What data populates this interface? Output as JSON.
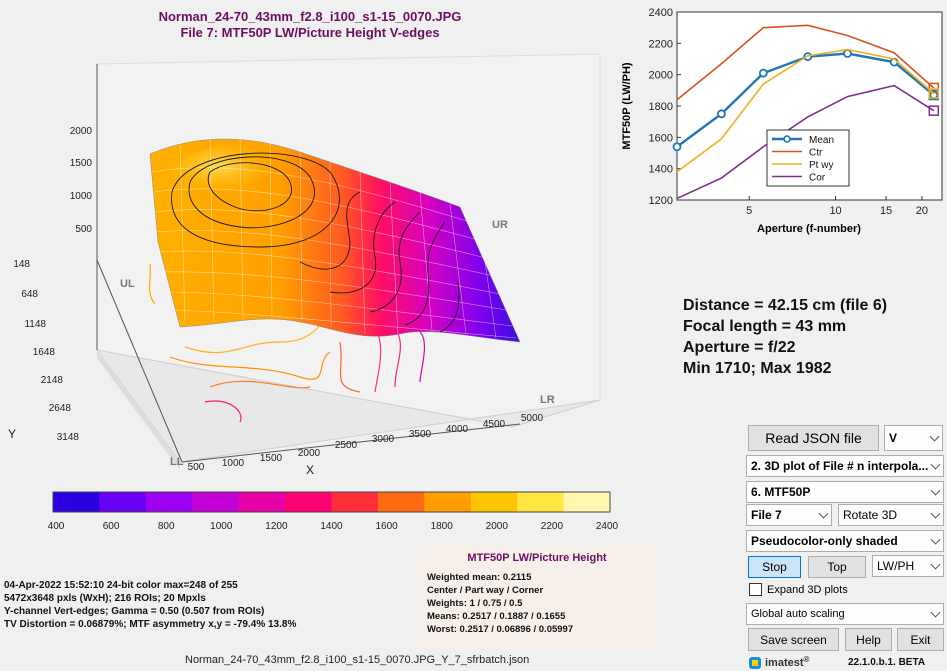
{
  "title": {
    "line1": "Norman_24-70_43mm_f2.8_i100_s1-15_0070.JPG",
    "line2": "File 7:   MTF50P LW/Picture Height   V-edges"
  },
  "plot3d": {
    "z_ticks": [
      "2000",
      "1500",
      "1000",
      "500"
    ],
    "y_ticks": [
      "148",
      "648",
      "1148",
      "1648",
      "2148",
      "2648",
      "3148"
    ],
    "x_ticks": [
      "500",
      "1000",
      "1500",
      "2000",
      "2500",
      "3000",
      "3500",
      "4000",
      "4500",
      "5000"
    ],
    "x_label": "X",
    "y_label": "Y",
    "corner_labels": {
      "ul": "UL",
      "ur": "UR",
      "ll": "LL",
      "lr": "LR"
    }
  },
  "colorbar": {
    "ticks": [
      "400",
      "600",
      "800",
      "1000",
      "1200",
      "1400",
      "1600",
      "1800",
      "2000",
      "2200",
      "2400"
    ],
    "colors": [
      "#2a00e0",
      "#6a00f5",
      "#9c00f0",
      "#c400d8",
      "#e600a8",
      "#ff0070",
      "#ff2e3a",
      "#ff6a10",
      "#ff9c00",
      "#ffc400",
      "#ffe640",
      "#fff7b0"
    ]
  },
  "chart_data": {
    "type": "line",
    "x": [
      2.8,
      4,
      5.6,
      8,
      11,
      16,
      22
    ],
    "series": [
      {
        "name": "Mean",
        "color": "#1f77b4",
        "values": [
          1540,
          1750,
          2010,
          2115,
          2135,
          2080,
          1870
        ]
      },
      {
        "name": "Ctr",
        "color": "#d9531e",
        "values": [
          1840,
          2070,
          2300,
          2315,
          2250,
          2140,
          1915
        ]
      },
      {
        "name": "Pt wy",
        "color": "#edb120",
        "values": [
          1380,
          1590,
          1940,
          2120,
          2160,
          2100,
          1880
        ]
      },
      {
        "name": "Cor",
        "color": "#7e2f8e",
        "values": [
          1210,
          1340,
          1540,
          1730,
          1860,
          1930,
          1770
        ]
      }
    ],
    "xlabel": "Aperture (f-number)",
    "ylabel": "MTF50P  (LW/PH)",
    "xlim": [
      2.8,
      23.5
    ],
    "ylim": [
      1200,
      2400
    ],
    "yticks": [
      1200,
      1400,
      1600,
      1800,
      2000,
      2200,
      2400
    ],
    "xticks": [
      5,
      10,
      15,
      20
    ],
    "xscale": "log",
    "grid": false,
    "legend": "lower-center"
  },
  "stats": {
    "line1": "Distance = 42.15 cm  (file 6)",
    "line2": "Focal length = 43 mm",
    "line3": "Aperture = f/22",
    "line4": "Min 1710;  Max 1982"
  },
  "info": {
    "line1": "04-Apr-2022 15:52:10  24-bit color  max=248 of 255",
    "line2": "5472x3648 pxls (WxH);  216 ROIs;  20 Mpxls",
    "line3": "Y-channel  Vert-edges;  Gamma = 0.50  (0.507 from ROIs)",
    "line4": "TV Distortion = 0.06879%;  MTF asymmetry x,y = -79.4%  13.8%"
  },
  "mtfbox": {
    "title": "MTF50P LW/Picture Height",
    "line1": "Weighted mean: 0.2115",
    "line2": "Center / Part way / Corner",
    "line3": "Weights: 1 / 0.75 / 0.5",
    "line4": "Means:    0.2517 / 0.1887 / 0.1655",
    "line5": "Worst:    0.2517 / 0.06896 / 0.05997"
  },
  "footer": "Norman_24-70_43mm_f2.8_i100_s1-15_0070.JPG_Y_7_sfrbatch.json",
  "controls": {
    "read_json": "Read JSON file",
    "channel": "V",
    "plot_type": "2. 3D plot of File # n interpola...",
    "measure": "6.  MTF50P",
    "file": "File 7",
    "rotate": "Rotate 3D",
    "shading": "Pseudocolor-only shaded",
    "stop": "Stop",
    "top": "Top",
    "units": "LW/PH",
    "expand": "Expand 3D plots",
    "scaling": "Global auto scaling",
    "save": "Save screen",
    "help": "Help",
    "exit": "Exit",
    "brand": "imatest",
    "brand_mark": "®",
    "version": "22.1.0.b.1. BETA"
  }
}
